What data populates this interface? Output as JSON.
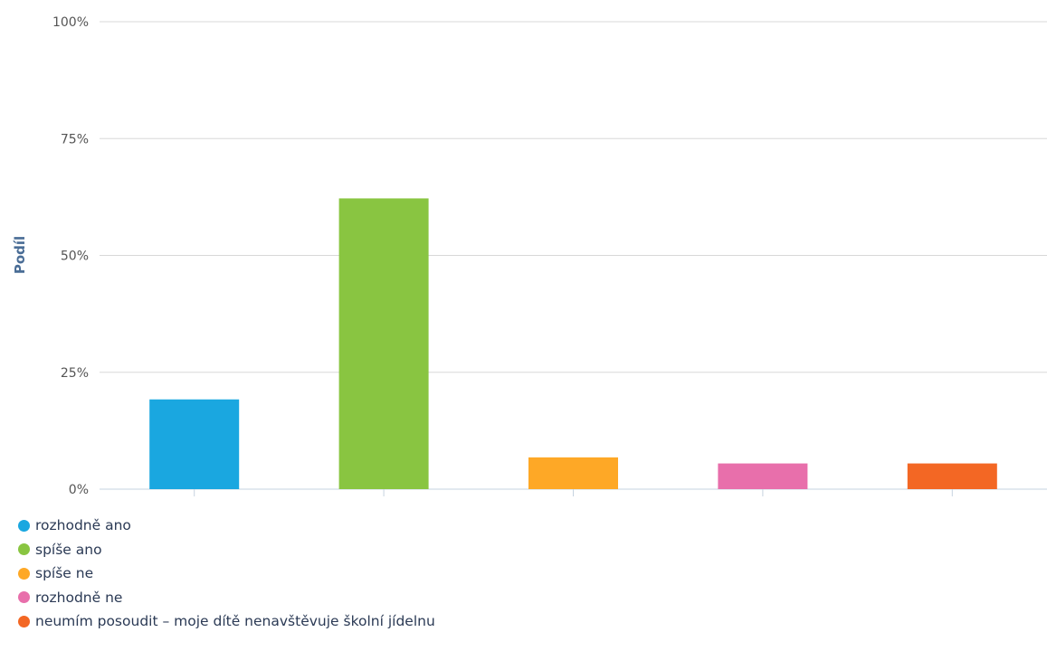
{
  "chart_data": {
    "type": "bar",
    "ylabel": "Podíl",
    "ylim": [
      0,
      100
    ],
    "yticks": [
      "0%",
      "25%",
      "50%",
      "75%",
      "100%"
    ],
    "ytick_values": [
      0,
      25,
      50,
      75,
      100
    ],
    "grid": true,
    "legend_position": "bottom-left",
    "categories": [
      "rozhodně ano",
      "spíše ano",
      "spíše ne",
      "rozhodně ne",
      "neumím posoudit – moje dítě nenavštěvuje školní jídelnu"
    ],
    "values": [
      19.2,
      62.2,
      6.8,
      5.5,
      5.5
    ],
    "colors": [
      "#1aa7e0",
      "#89c541",
      "#fea826",
      "#e86fab",
      "#f36724"
    ]
  }
}
